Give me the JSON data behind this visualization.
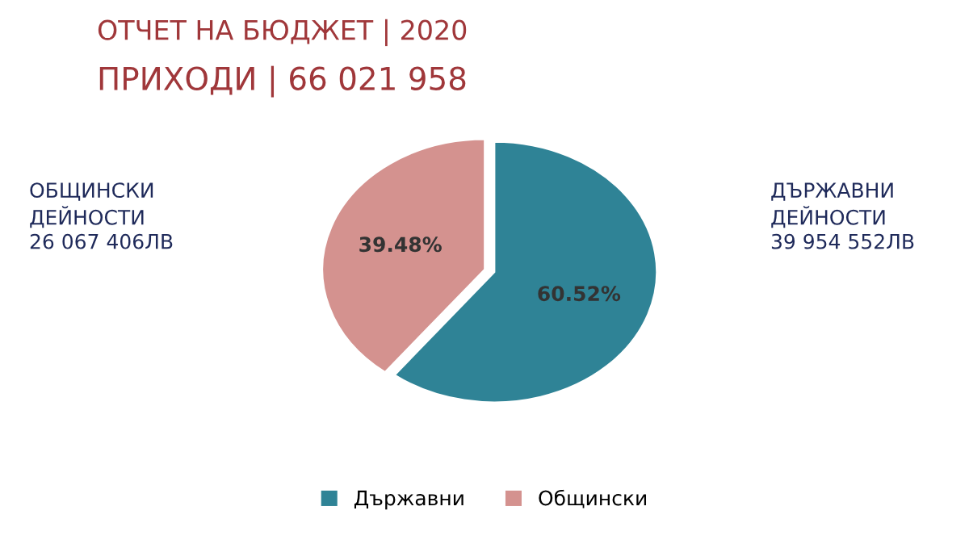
{
  "chart_data": {
    "type": "pie",
    "title": "ОТЧЕТ НА БЮДЖЕТ | 2020",
    "subtitle": "ПРИХОДИ | 66 021 958",
    "categories": [
      "Държавни",
      "Общински"
    ],
    "values": [
      60.52,
      39.48
    ],
    "colors": [
      "#2f8396",
      "#d4928f"
    ],
    "value_labels": [
      "60.52%",
      "39.48%"
    ],
    "annotations": [
      "ДЪРЖАВНИ\nДЕЙНОСТИ\n39 954 552ЛВ",
      "ОБЩИНСКИ\nДЕЙНОСТИ\n26 067 406ЛВ"
    ],
    "legend": "bottom"
  }
}
